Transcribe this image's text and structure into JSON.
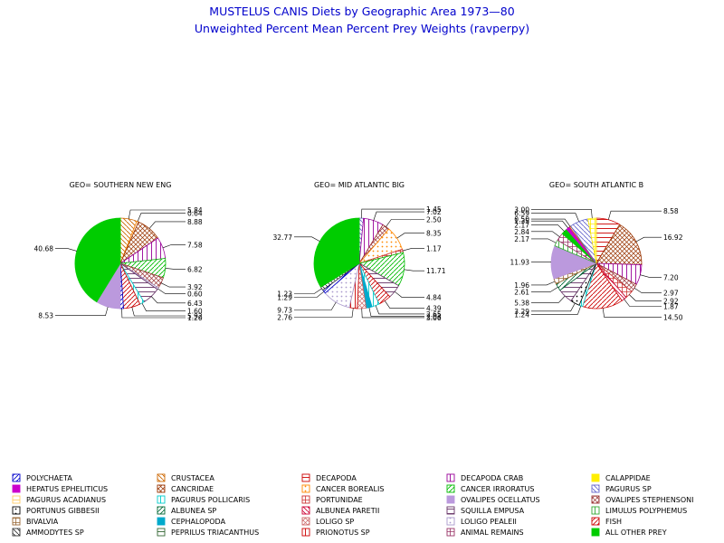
{
  "chart_data": {
    "type": "pie",
    "title": "MUSTELUS CANIS Diets by Geographic Area 1973—80",
    "subtitle": "Unweighted Percent Mean Percent Prey  Weights (ravperpy)",
    "legend_position": "bottom",
    "legend": [
      {
        "name": "POLYCHAETA",
        "color": "#0000cc"
      },
      {
        "name": "CRUSTACEA",
        "color": "#cc6600"
      },
      {
        "name": "DECAPODA",
        "color": "#cc0000"
      },
      {
        "name": "DECAPODA CRAB",
        "color": "#990099"
      },
      {
        "name": "CALAPPIDAE",
        "color": "#ffee00"
      },
      {
        "name": "HEPATUS EPHELITICUS",
        "color": "#cc00cc"
      },
      {
        "name": "CANCRIDAE",
        "color": "#993300"
      },
      {
        "name": "CANCER BOREALIS",
        "color": "#ff8800"
      },
      {
        "name": "CANCER IRRORATUS",
        "color": "#00bb00"
      },
      {
        "name": "PAGURUS SP",
        "color": "#6666cc"
      },
      {
        "name": "PAGURUS ACADIANUS",
        "color": "#ffcc66"
      },
      {
        "name": "PAGURUS POLLICARIS",
        "color": "#00cccc"
      },
      {
        "name": "PORTUNIDAE",
        "color": "#cc3333"
      },
      {
        "name": "OVALIPES OCELLATUS",
        "color": "#bb99dd"
      },
      {
        "name": "OVALIPES STEPHENSONI",
        "color": "#993333"
      },
      {
        "name": "PORTUNUS GIBBESII",
        "color": "#000000"
      },
      {
        "name": "ALBUNEA SP",
        "color": "#006633"
      },
      {
        "name": "ALBUNEA PARETII",
        "color": "#cc0033"
      },
      {
        "name": "SQUILLA EMPUSA",
        "color": "#663366"
      },
      {
        "name": "LIMULUS POLYPHEMUS",
        "color": "#33aa33"
      },
      {
        "name": "BIVALVIA",
        "color": "#996633"
      },
      {
        "name": "CEPHALOPODA",
        "color": "#00aacc"
      },
      {
        "name": "LOLIGO SP",
        "color": "#cc6666"
      },
      {
        "name": "LOLIGO PEALEII",
        "color": "#aa99cc"
      },
      {
        "name": "FISH",
        "color": "#cc0000"
      },
      {
        "name": "AMMODYTES SP",
        "color": "#333333"
      },
      {
        "name": "PEPRILUS TRIACANTHUS",
        "color": "#336633"
      },
      {
        "name": "PRIONOTUS SP",
        "color": "#cc0000"
      },
      {
        "name": "ANIMAL REMAINS",
        "color": "#993366"
      },
      {
        "name": "ALL OTHER PREY",
        "color": "#00cc00"
      }
    ],
    "pies": [
      {
        "label": "GEO= SOUTHERN NEW ENG",
        "slices": [
          {
            "category": "CRUSTACEA",
            "value": 5.84
          },
          {
            "category": "CANCER BOREALIS",
            "value": 0.64
          },
          {
            "category": "CANCRIDAE",
            "value": 8.88
          },
          {
            "category": "DECAPODA CRAB",
            "value": 7.58
          },
          {
            "category": "CANCER IRRORATUS",
            "value": 6.82
          },
          {
            "category": "OVALIPES STEPHENSONI",
            "value": 3.92
          },
          {
            "category": "LOLIGO PEALEII",
            "value": 0.6
          },
          {
            "category": "SQUILLA EMPUSA",
            "value": 6.43
          },
          {
            "category": "PAGURUS POLLICARIS",
            "value": 1.6
          },
          {
            "category": "FISH",
            "value": 5.92
          },
          {
            "category": "POLYCHAETA",
            "value": 1.2
          },
          {
            "category": "OVALIPES OCELLATUS",
            "value": 8.53
          },
          {
            "category": "ALL OTHER PREY",
            "value": 40.68
          }
        ]
      },
      {
        "label": "GEO= MID ATLANTIC BIG",
        "slices": [
          {
            "category": "PAGURUS SP",
            "value": 1.45
          },
          {
            "category": "DECAPODA CRAB",
            "value": 7.02
          },
          {
            "category": "OVALIPES STEPHENSONI",
            "value": 2.5
          },
          {
            "category": "CANCER BOREALIS",
            "value": 8.35
          },
          {
            "category": "PORTUNIDAE",
            "value": 1.17
          },
          {
            "category": "CANCER IRRORATUS",
            "value": 11.71
          },
          {
            "category": "SQUILLA EMPUSA",
            "value": 4.84
          },
          {
            "category": "FISH",
            "value": 4.39
          },
          {
            "category": "PAGURUS POLLICARIS",
            "value": 2.65
          },
          {
            "category": "CEPHALOPODA",
            "value": 2.03
          },
          {
            "category": "LOLIGO SP",
            "value": 3.06
          },
          {
            "category": "PRIONOTUS SP",
            "value": 2.76
          },
          {
            "category": "LOLIGO PEALEII",
            "value": 9.73
          },
          {
            "category": "POLYCHAETA",
            "value": 1.29
          },
          {
            "category": "AMMODYTES SP",
            "value": 1.23
          },
          {
            "category": "ALL OTHER PREY",
            "value": 32.77
          }
        ]
      },
      {
        "label": "GEO= SOUTH ATLANTIC B",
        "slices": [
          {
            "category": "DECAPODA",
            "value": 8.58
          },
          {
            "category": "CANCRIDAE",
            "value": 16.92
          },
          {
            "category": "DECAPODA CRAB",
            "value": 7.2
          },
          {
            "category": "OVALIPES STEPHENSONI",
            "value": 2.97
          },
          {
            "category": "PORTUNIDAE",
            "value": 2.92
          },
          {
            "category": "ALBUNEA PARETII",
            "value": 1.87
          },
          {
            "category": "FISH",
            "value": 14.5
          },
          {
            "category": "PAGURUS POLLICARIS",
            "value": 1.24
          },
          {
            "category": "PORTUNUS GIBBESII",
            "value": 3.29
          },
          {
            "category": "SQUILLA EMPUSA",
            "value": 5.38
          },
          {
            "category": "ALBUNEA SP",
            "value": 2.61
          },
          {
            "category": "BIVALVIA",
            "value": 1.96
          },
          {
            "category": "OVALIPES OCELLATUS",
            "value": 11.93
          },
          {
            "category": "LIMULUS POLYPHEMUS",
            "value": 2.17
          },
          {
            "category": "ANIMAL REMAINS",
            "value": 2.84
          },
          {
            "category": "ALL OTHER PREY",
            "value": 2.17
          },
          {
            "category": "HEPATUS EPHELITICUS",
            "value": 1.35
          },
          {
            "category": "CRUSTACEA",
            "value": 0.5
          },
          {
            "category": "PAGURUS SP",
            "value": 6.59
          },
          {
            "category": "CALAPPIDAE",
            "value": 3.0
          }
        ]
      }
    ]
  }
}
